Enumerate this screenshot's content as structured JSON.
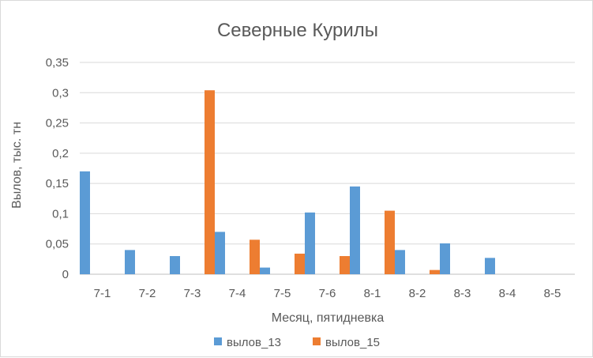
{
  "chart_data": {
    "type": "bar",
    "title": "Северные Курилы",
    "xlabel": "Месяц, пятидневка",
    "ylabel": "Вылов, тыс. тн",
    "categories": [
      "7-1",
      "7-2",
      "7-3",
      "7-4",
      "7-5",
      "7-6",
      "8-1",
      "8-2",
      "8-3",
      "8-4",
      "8-5"
    ],
    "series": [
      {
        "name": "вылов_13",
        "color": "#5b9bd5",
        "values": [
          0.17,
          0.04,
          0.03,
          0.07,
          0.011,
          0.102,
          0.145,
          0.04,
          0.051,
          0.027,
          0
        ]
      },
      {
        "name": "вылов_15",
        "color": "#ed7d31",
        "values": [
          0,
          0,
          0.304,
          0.057,
          0.034,
          0.03,
          0.105,
          0.007,
          0,
          0,
          0
        ]
      }
    ],
    "ylim": [
      0,
      0.35
    ],
    "yticks": [
      "0",
      "0,05",
      "0,1",
      "0,15",
      "0,2",
      "0,25",
      "0,3",
      "0,35"
    ],
    "grid": true,
    "legend": "bottom"
  }
}
